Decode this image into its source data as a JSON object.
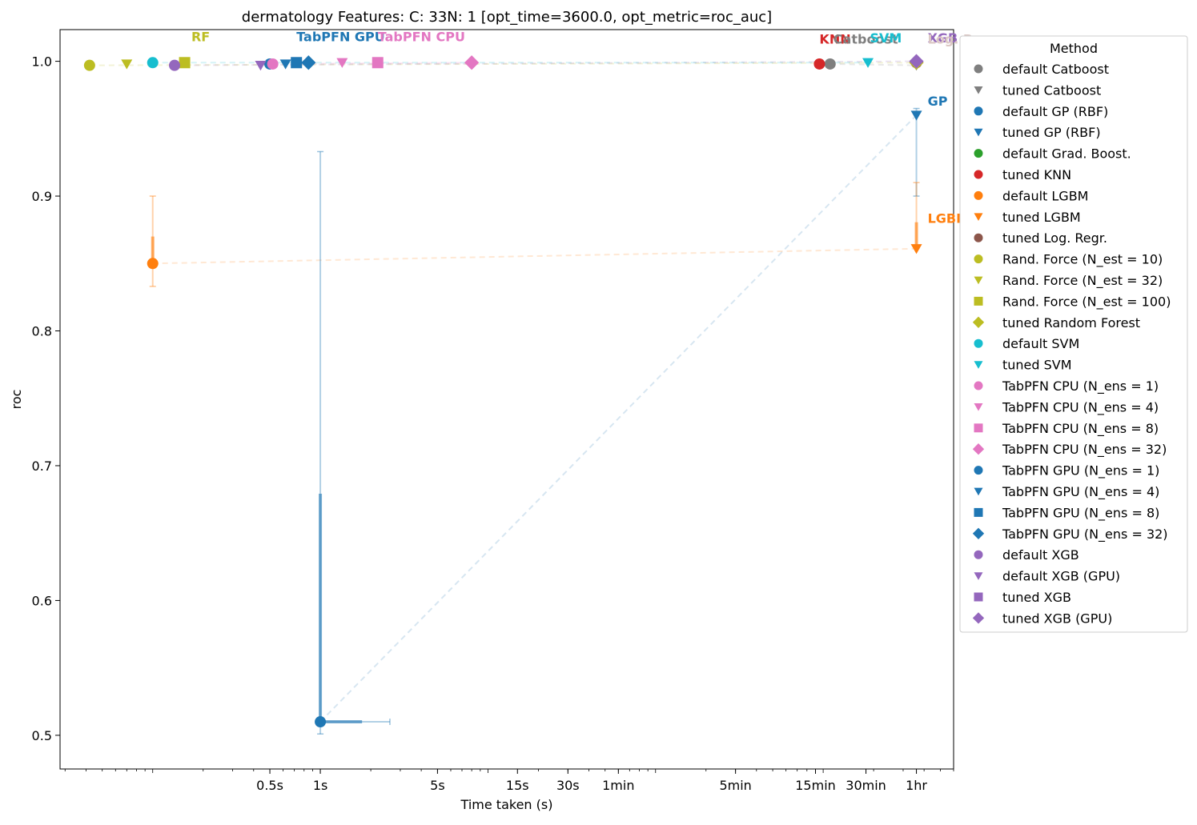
{
  "chart_data": {
    "type": "scatter",
    "title": "dermatology Features: C: 33N: 1 [opt_time=3600.0, opt_metric=roc_auc]",
    "xlabel": "Time taken (s)",
    "ylabel": "roc",
    "x_scale": "log",
    "xlim": [
      0.028,
      6000
    ],
    "ylim": [
      0.475,
      1.0235
    ],
    "x_ticks": [
      {
        "label": "0.5s",
        "value": 0.5
      },
      {
        "label": "1s",
        "value": 1
      },
      {
        "label": "5s",
        "value": 5
      },
      {
        "label": "15s",
        "value": 15
      },
      {
        "label": "30s",
        "value": 30
      },
      {
        "label": "1min",
        "value": 60
      },
      {
        "label": "5min",
        "value": 300
      },
      {
        "label": "15min",
        "value": 900
      },
      {
        "label": "30min",
        "value": 1800
      },
      {
        "label": "1hr",
        "value": 3600
      }
    ],
    "y_ticks": [
      {
        "label": "0.5",
        "value": 0.5
      },
      {
        "label": "0.6",
        "value": 0.6
      },
      {
        "label": "0.7",
        "value": 0.7
      },
      {
        "label": "0.8",
        "value": 0.8
      },
      {
        "label": "0.9",
        "value": 0.9
      },
      {
        "label": "1.0",
        "value": 1.0
      }
    ],
    "grid": false,
    "legend": {
      "title": "Method",
      "placement": "outside-right"
    },
    "series": [
      {
        "name": "default Catboost",
        "color": "#7f7f7f",
        "marker": "circle",
        "x": 1100,
        "y": 0.998
      },
      {
        "name": "tuned Catboost",
        "color": "#7f7f7f",
        "marker": "triangle",
        "x": 3600,
        "y": 0.997
      },
      {
        "name": "default GP (RBF)",
        "color": "#1f77b4",
        "marker": "circle",
        "x": 0.5,
        "y": 0.998
      },
      {
        "name": "tuned GP (RBF)",
        "color": "#1f77b4",
        "marker": "triangle",
        "x": 3600,
        "y": 0.96,
        "err_y": [
          0.9,
          0.965
        ]
      },
      {
        "name": "default Grad. Boost.",
        "color": "#2ca02c",
        "marker": "circle"
      },
      {
        "name": "tuned KNN",
        "color": "#d62728",
        "marker": "circle",
        "x": 950,
        "y": 0.998
      },
      {
        "name": "default LGBM",
        "color": "#ff7f0e",
        "marker": "circle",
        "x": 0.1,
        "y": 0.85,
        "err_y": [
          0.833,
          0.9
        ]
      },
      {
        "name": "tuned LGBM",
        "color": "#ff7f0e",
        "marker": "triangle",
        "x": 3600,
        "y": 0.861,
        "err_y": [
          0.861,
          0.91
        ]
      },
      {
        "name": "tuned Log. Regr.",
        "color": "#8c564b",
        "marker": "circle",
        "x": 3600,
        "y": 0.999
      },
      {
        "name": "Rand. Force (N_est =  10)",
        "color": "#bcbd22",
        "marker": "circle",
        "x": 0.042,
        "y": 0.997
      },
      {
        "name": "Rand. Force (N_est =  32)",
        "color": "#bcbd22",
        "marker": "triangle",
        "x": 0.07,
        "y": 0.998
      },
      {
        "name": "Rand. Force (N_est = 100)",
        "color": "#bcbd22",
        "marker": "square",
        "x": 0.155,
        "y": 0.999
      },
      {
        "name": "tuned Random Forest",
        "color": "#bcbd22",
        "marker": "diamond",
        "x": 3600,
        "y": 0.999
      },
      {
        "name": "default SVM",
        "color": "#17becf",
        "marker": "circle",
        "x": 0.1,
        "y": 0.999
      },
      {
        "name": "tuned SVM",
        "color": "#17becf",
        "marker": "triangle",
        "x": 1850,
        "y": 0.999
      },
      {
        "name": "TabPFN CPU (N_ens =  1)",
        "color": "#e377c2",
        "marker": "circle",
        "x": 0.52,
        "y": 0.998
      },
      {
        "name": "TabPFN CPU (N_ens =  4)",
        "color": "#e377c2",
        "marker": "triangle",
        "x": 1.35,
        "y": 0.999
      },
      {
        "name": "TabPFN CPU (N_ens =  8)",
        "color": "#e377c2",
        "marker": "square",
        "x": 2.2,
        "y": 0.999
      },
      {
        "name": "TabPFN CPU (N_ens = 32)",
        "color": "#e377c2",
        "marker": "diamond",
        "x": 8.0,
        "y": 0.999
      },
      {
        "name": "TabPFN GPU (N_ens =  1)",
        "color": "#1f77b4",
        "marker": "circle",
        "x": 1.0,
        "y": 0.51,
        "err_y": [
          0.501,
          0.933
        ],
        "err_x": [
          0.95,
          2.6
        ]
      },
      {
        "name": "TabPFN GPU (N_ens =  4)",
        "color": "#1f77b4",
        "marker": "triangle",
        "x": 0.62,
        "y": 0.998
      },
      {
        "name": "TabPFN GPU (N_ens =  8)",
        "color": "#1f77b4",
        "marker": "square",
        "x": 0.72,
        "y": 0.999
      },
      {
        "name": "TabPFN GPU (N_ens = 32)",
        "color": "#1f77b4",
        "marker": "diamond",
        "x": 0.85,
        "y": 0.999
      },
      {
        "name": "default XGB",
        "color": "#9467bd",
        "marker": "circle",
        "x": 0.135,
        "y": 0.997
      },
      {
        "name": "default XGB (GPU)",
        "color": "#9467bd",
        "marker": "triangle",
        "x": 0.44,
        "y": 0.997
      },
      {
        "name": "tuned XGB",
        "color": "#9467bd",
        "marker": "square"
      },
      {
        "name": "tuned XGB (GPU)",
        "color": "#9467bd",
        "marker": "diamond",
        "x": 3600,
        "y": 1.0
      }
    ],
    "annotations": [
      {
        "text": "RF",
        "color": "#bcbd22",
        "x": 0.17,
        "y": 1.015
      },
      {
        "text": "TabPFN GPU",
        "color": "#1f77b4",
        "x": 0.72,
        "y": 1.015
      },
      {
        "text": "TabPFN CPU",
        "color": "#e377c2",
        "x": 2.2,
        "y": 1.015
      },
      {
        "text": "KNN",
        "color": "#d62728",
        "x": 950,
        "y": 1.013
      },
      {
        "text": "Catboost",
        "color": "#7f7f7f",
        "x": 1150,
        "y": 1.013
      },
      {
        "text": "SVM",
        "color": "#17becf",
        "x": 1900,
        "y": 1.014
      },
      {
        "text": "XGB",
        "color": "#9467bd",
        "x": 4200,
        "y": 1.014
      },
      {
        "text": "Log. Regr.",
        "color": "#dbc7c4",
        "x": 4200,
        "y": 1.013
      },
      {
        "text": "GP",
        "color": "#1f77b4",
        "x": 4200,
        "y": 0.967
      },
      {
        "text": "LGBM",
        "color": "#ff7f0e",
        "x": 4200,
        "y": 0.88
      }
    ],
    "connectors": [
      {
        "color": "#bcbd22",
        "from": [
          0.042,
          0.997
        ],
        "to": [
          3600,
          0.999
        ]
      },
      {
        "color": "#1f77b4",
        "from": [
          1.0,
          0.51
        ],
        "to": [
          3600,
          0.96
        ]
      },
      {
        "color": "#ff7f0e",
        "from": [
          0.1,
          0.85
        ],
        "to": [
          3600,
          0.861
        ]
      },
      {
        "color": "#e377c2",
        "from": [
          0.52,
          0.998
        ],
        "to": [
          8.0,
          0.999
        ]
      },
      {
        "color": "#9467bd",
        "from": [
          0.135,
          0.997
        ],
        "to": [
          3600,
          1.0
        ]
      },
      {
        "color": "#17becf",
        "from": [
          0.1,
          0.999
        ],
        "to": [
          1850,
          0.999
        ]
      },
      {
        "color": "#7f7f7f",
        "from": [
          1100,
          0.998
        ],
        "to": [
          3600,
          0.997
        ]
      }
    ]
  }
}
